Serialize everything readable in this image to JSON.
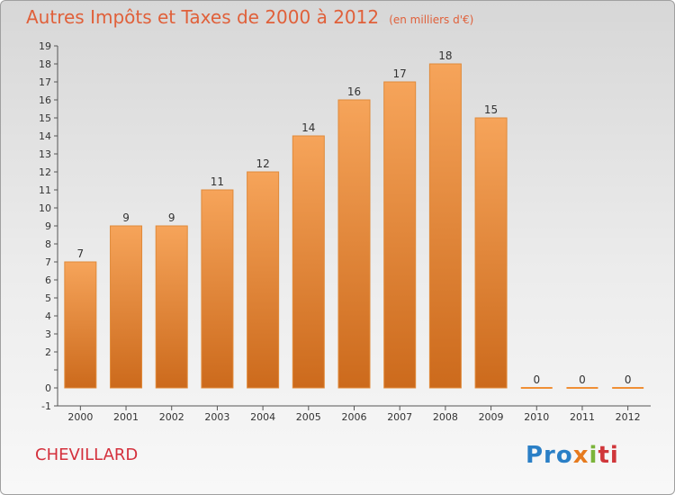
{
  "chart_data": {
    "type": "bar",
    "title": "Autres Impôts et Taxes de 2000 à 2012",
    "unit_label": "(en milliers d'€)",
    "categories": [
      "2000",
      "2001",
      "2002",
      "2003",
      "2004",
      "2005",
      "2006",
      "2007",
      "2008",
      "2009",
      "2010",
      "2011",
      "2012"
    ],
    "values": [
      7,
      9,
      9,
      11,
      12,
      14,
      16,
      17,
      18,
      15,
      0,
      0,
      0
    ],
    "value_labels": [
      "7",
      "9",
      "9",
      "11",
      "12",
      "14",
      "16",
      "17",
      "18",
      "15",
      "0",
      "0",
      "0"
    ],
    "ylim": [
      -1,
      19
    ],
    "yticks": [
      "-1",
      "0",
      "",
      "2",
      "3",
      "4",
      "5",
      "6",
      "7",
      "8",
      "9",
      "10",
      "11",
      "12",
      "13",
      "14",
      "15",
      "16",
      "17",
      "18",
      "19"
    ],
    "grid": false,
    "bar_color": "#f08f36"
  },
  "footer": {
    "commune": "CHEVILLARD",
    "logo_parts": [
      "Pro",
      "x",
      "i",
      "ti"
    ]
  }
}
